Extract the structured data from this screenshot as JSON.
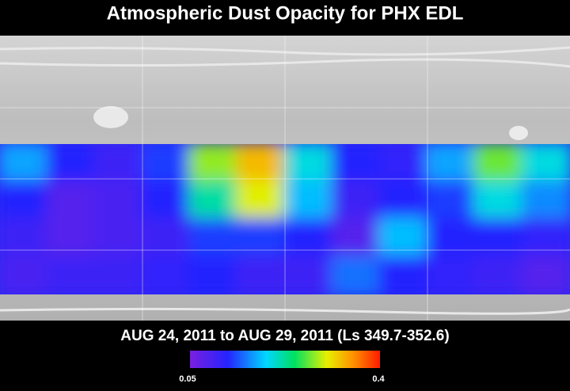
{
  "title": "Atmospheric Dust Opacity for PHX EDL",
  "subtitle": "AUG 24, 2011 to AUG 29, 2011 (Ls 349.7-352.6)",
  "colorbar": {
    "min": 0.05,
    "max": 0.4
  },
  "dust_opacity": [
    [
      0.17,
      0.12,
      0.1,
      0.13,
      0.28,
      0.33,
      0.2,
      0.12,
      0.11,
      0.17,
      0.27,
      0.2
    ],
    [
      0.12,
      0.08,
      0.09,
      0.12,
      0.22,
      0.3,
      0.18,
      0.1,
      0.12,
      0.13,
      0.2,
      0.16
    ],
    [
      0.1,
      0.08,
      0.09,
      0.1,
      0.13,
      0.13,
      0.12,
      0.08,
      0.18,
      0.12,
      0.12,
      0.11
    ],
    [
      0.09,
      0.1,
      0.1,
      0.11,
      0.12,
      0.1,
      0.1,
      0.15,
      0.12,
      0.11,
      0.1,
      0.08
    ]
  ]
}
